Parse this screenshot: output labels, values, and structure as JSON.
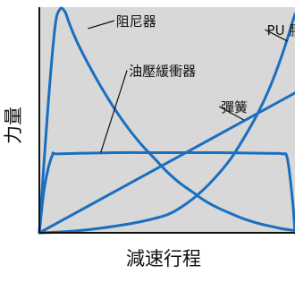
{
  "chart_data": {
    "type": "line",
    "title": "",
    "xlabel": "減速行程",
    "ylabel": "力量",
    "xlim": [
      0,
      1
    ],
    "ylim": [
      0,
      1
    ],
    "grid": false,
    "colors": {
      "plot_background": "#d8d8d8",
      "axis": "#111111",
      "series": "#1a6fbf",
      "leader": "#111111"
    },
    "series": [
      {
        "name": "阻尼器",
        "x": [
          0,
          0.03,
          0.06,
          0.08,
          0.1,
          0.12,
          0.15,
          0.2,
          0.25,
          0.3,
          0.35,
          0.4,
          0.45,
          0.5,
          0.55,
          0.6,
          0.65,
          0.7,
          0.75,
          0.8,
          0.85,
          0.9,
          0.95,
          1.0
        ],
        "y": [
          0,
          0.5,
          0.9,
          0.99,
          0.98,
          0.92,
          0.84,
          0.73,
          0.63,
          0.54,
          0.46,
          0.39,
          0.33,
          0.27,
          0.22,
          0.18,
          0.14,
          0.11,
          0.085,
          0.062,
          0.044,
          0.03,
          0.018,
          0.01
        ]
      },
      {
        "name": "PU 膠",
        "x": [
          0,
          0.1,
          0.2,
          0.3,
          0.4,
          0.5,
          0.55,
          0.6,
          0.65,
          0.7,
          0.75,
          0.8,
          0.85,
          0.9,
          0.95,
          1.0
        ],
        "y": [
          0,
          0.005,
          0.015,
          0.03,
          0.05,
          0.08,
          0.11,
          0.15,
          0.2,
          0.26,
          0.33,
          0.42,
          0.52,
          0.64,
          0.79,
          0.97
        ]
      },
      {
        "name": "油壓緩衝器",
        "x": [
          0,
          0.02,
          0.05,
          0.08,
          0.3,
          0.5,
          0.7,
          0.9,
          0.95,
          0.97,
          0.99,
          1.0
        ],
        "y": [
          0,
          0.2,
          0.34,
          0.35,
          0.355,
          0.355,
          0.355,
          0.352,
          0.35,
          0.33,
          0.15,
          0
        ]
      },
      {
        "name": "彈簧",
        "x": [
          0,
          1
        ],
        "y": [
          0,
          0.62
        ]
      }
    ],
    "annotations": [
      {
        "series": "阻尼器",
        "label": "阻尼器",
        "point": [
          0.19,
          0.905
        ],
        "label_at": [
          0.3,
          0.94
        ]
      },
      {
        "series": "PU 膠",
        "label": "PU 膠",
        "point": [
          0.97,
          0.85
        ],
        "label_at": [
          0.89,
          0.9
        ]
      },
      {
        "series": "油壓緩衝器",
        "label": "油壓緩衝器",
        "point": [
          0.24,
          0.355
        ],
        "label_at": [
          0.35,
          0.72
        ]
      },
      {
        "series": "彈簧",
        "label": "彈簧",
        "point": [
          0.8,
          0.5
        ],
        "label_at": [
          0.71,
          0.56
        ]
      }
    ]
  }
}
